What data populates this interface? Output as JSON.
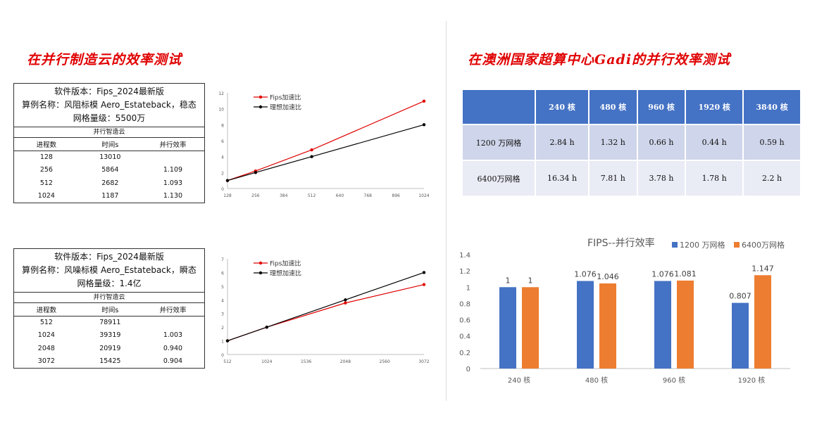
{
  "headings": {
    "left": "在并行制造云的效率测试",
    "right": "在澳洲国家超算中心Gadi的并行效率测试"
  },
  "test1": {
    "info": [
      "软件版本：Fips_2024最新版",
      "算例名称：风阻标模 Aero_Estateback，稳态",
      "网格量级：5500万"
    ],
    "platform": "并行智造云",
    "headers": [
      "进程数",
      "时间s",
      "并行效率"
    ],
    "rows": [
      [
        "128",
        "13010",
        ""
      ],
      [
        "256",
        "5864",
        "1.109"
      ],
      [
        "512",
        "2682",
        "1.093"
      ],
      [
        "1024",
        "1187",
        "1.130"
      ]
    ],
    "chart_data": {
      "type": "line",
      "x": [
        128,
        256,
        512,
        1024
      ],
      "series": [
        {
          "name": "Fips加速比",
          "values": [
            1,
            2.2,
            4.85,
            10.96
          ],
          "color": "#e00000"
        },
        {
          "name": "理想加速比",
          "values": [
            1,
            2,
            4,
            8
          ],
          "color": "#000000"
        }
      ],
      "xticks": [
        128,
        256,
        384,
        512,
        640,
        768,
        896,
        1024
      ],
      "xlim": [
        128,
        1024
      ],
      "yticks": [
        0,
        2,
        4,
        6,
        8,
        10,
        12
      ],
      "ylim": [
        0,
        12
      ],
      "legend": "top-left"
    }
  },
  "test2": {
    "info": [
      "软件版本：Fips_2024最新版",
      "算例名称：风噪标模 Aero_Estateback，瞬态",
      "网格量级：1.4亿"
    ],
    "platform": "并行智造云",
    "headers": [
      "进程数",
      "时间s",
      "并行效率"
    ],
    "rows": [
      [
        "512",
        "78911",
        ""
      ],
      [
        "1024",
        "39319",
        "1.003"
      ],
      [
        "2048",
        "20919",
        "0.940"
      ],
      [
        "3072",
        "15425",
        "0.904"
      ]
    ],
    "chart_data": {
      "type": "line",
      "x": [
        512,
        1024,
        2048,
        3072
      ],
      "series": [
        {
          "name": "Fips加速比",
          "values": [
            1,
            2.0,
            3.77,
            5.12
          ],
          "color": "#e00000"
        },
        {
          "name": "理想加速比",
          "values": [
            1,
            2,
            4,
            6
          ],
          "color": "#000000"
        }
      ],
      "xticks": [
        512,
        1024,
        1536,
        2048,
        2560,
        3072
      ],
      "xlim": [
        512,
        3072
      ],
      "yticks": [
        0,
        1,
        2,
        3,
        4,
        5,
        6,
        7
      ],
      "ylim": [
        0,
        7
      ],
      "legend": "top-left"
    }
  },
  "gadi_table": {
    "headers": [
      "",
      "240 核",
      "480 核",
      "960 核",
      "1920 核",
      "3840 核"
    ],
    "rows": [
      [
        "1200 万网格",
        "2.84 h",
        "1.32 h",
        "0.66 h",
        "0.44 h",
        "0.59 h"
      ],
      [
        "6400万网格",
        "16.34 h",
        "7.81 h",
        "3.78 h",
        "1.78 h",
        "2.2 h"
      ]
    ]
  },
  "fips_chart": {
    "chart_data": {
      "type": "bar",
      "title": "FIPS--并行效率",
      "categories": [
        "240 核",
        "480 核",
        "960 核",
        "1920 核"
      ],
      "series": [
        {
          "name": "1200 万网格",
          "values": [
            1,
            1.076,
            1.076,
            0.807
          ],
          "labels": [
            "1",
            "1.076",
            "1.076",
            "0.807"
          ],
          "color": "#4472c4"
        },
        {
          "name": "6400万网格",
          "values": [
            1,
            1.046,
            1.081,
            1.147
          ],
          "labels": [
            "1",
            "1.046",
            "1.081",
            "1.147"
          ],
          "color": "#ed7d31"
        }
      ],
      "yticks": [
        "0",
        "0.2",
        "0.4",
        "0.6",
        "0.8",
        "1",
        "1.2",
        "1.4"
      ],
      "ylim": [
        0,
        1.4
      ],
      "legend": "top-right"
    }
  }
}
